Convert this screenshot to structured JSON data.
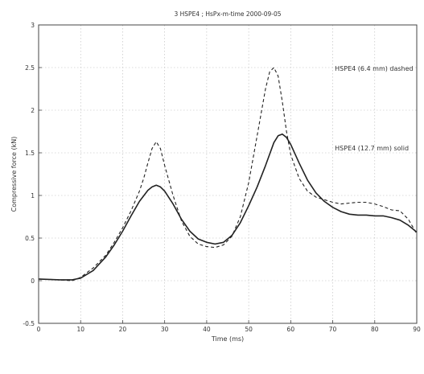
{
  "chart_data": {
    "type": "line",
    "title": "3 HSPE4 ; HsPx-m-time 2000-09-05",
    "xlabel": "Time (ms)",
    "ylabel": "Compressive force (kN)",
    "xlim": [
      0,
      90
    ],
    "ylim": [
      -0.5,
      3
    ],
    "x_ticks": [
      0,
      10,
      20,
      30,
      40,
      50,
      60,
      70,
      80,
      90
    ],
    "y_ticks": [
      -0.5,
      0,
      0.5,
      1,
      1.5,
      2,
      2.5,
      3
    ],
    "x_tick_labels": [
      "0",
      "10",
      "20",
      "30",
      "40",
      "50",
      "60",
      "70",
      "80",
      "90"
    ],
    "y_tick_labels": [
      "-0.5",
      "0",
      "0.5",
      "1",
      "1.5",
      "2",
      "2.5",
      "3"
    ],
    "grid": true,
    "series": [
      {
        "style": "dashed",
        "color": "#222222",
        "x": [
          0,
          5,
          8,
          10,
          13,
          16,
          18,
          20,
          22,
          24,
          25,
          26,
          27,
          28,
          29,
          30,
          32,
          34,
          36,
          38,
          40,
          42,
          44,
          46,
          48,
          50,
          52,
          54,
          55,
          56,
          57,
          58,
          59,
          60,
          62,
          64,
          66,
          68,
          70,
          72,
          74,
          76,
          78,
          80,
          82,
          84,
          86,
          88,
          90
        ],
        "y": [
          0.02,
          0.01,
          0.0,
          0.04,
          0.15,
          0.3,
          0.45,
          0.62,
          0.82,
          1.05,
          1.2,
          1.38,
          1.55,
          1.63,
          1.55,
          1.35,
          1.0,
          0.7,
          0.52,
          0.43,
          0.4,
          0.39,
          0.42,
          0.52,
          0.75,
          1.15,
          1.7,
          2.25,
          2.45,
          2.5,
          2.4,
          2.1,
          1.75,
          1.48,
          1.2,
          1.05,
          0.98,
          0.95,
          0.92,
          0.9,
          0.91,
          0.92,
          0.92,
          0.9,
          0.87,
          0.83,
          0.82,
          0.72,
          0.55
        ]
      },
      {
        "style": "solid",
        "color": "#222222",
        "x": [
          0,
          5,
          8,
          10,
          13,
          16,
          18,
          20,
          22,
          24,
          26,
          27,
          28,
          29,
          30,
          32,
          34,
          36,
          38,
          40,
          42,
          44,
          46,
          48,
          50,
          52,
          54,
          56,
          57,
          58,
          59,
          60,
          62,
          64,
          66,
          68,
          70,
          72,
          74,
          76,
          78,
          80,
          82,
          84,
          86,
          88,
          90
        ],
        "y": [
          0.02,
          0.01,
          0.01,
          0.03,
          0.12,
          0.28,
          0.42,
          0.58,
          0.76,
          0.93,
          1.06,
          1.1,
          1.12,
          1.1,
          1.05,
          0.9,
          0.72,
          0.58,
          0.49,
          0.45,
          0.43,
          0.45,
          0.53,
          0.68,
          0.88,
          1.1,
          1.35,
          1.62,
          1.7,
          1.72,
          1.68,
          1.6,
          1.38,
          1.18,
          1.03,
          0.93,
          0.86,
          0.81,
          0.78,
          0.77,
          0.77,
          0.76,
          0.76,
          0.74,
          0.71,
          0.65,
          0.57
        ]
      }
    ],
    "annotations": [
      {
        "text": "HSPE4 (6.4 mm) dashed",
        "x": 70.5,
        "y": 2.46
      },
      {
        "text": "HSPE4 (12.7 mm) solid",
        "x": 70.5,
        "y": 1.53
      }
    ]
  }
}
